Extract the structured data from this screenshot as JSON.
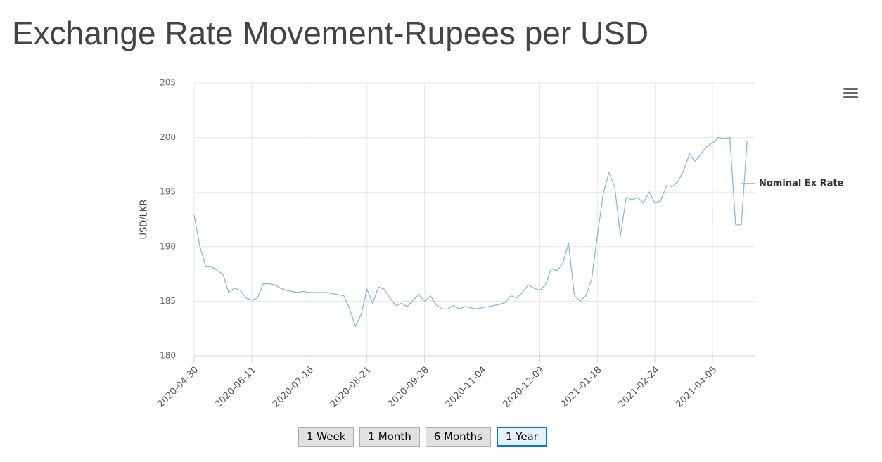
{
  "chart_data": {
    "type": "line",
    "title": "Exchange Rate Movement-Rupees per USD",
    "ylabel": "USD/LKR",
    "categories": [
      "2020-04-30",
      null,
      null,
      null,
      null,
      null,
      null,
      null,
      null,
      null,
      "2020-06-11",
      null,
      null,
      null,
      null,
      null,
      null,
      null,
      null,
      null,
      "2020-07-16",
      null,
      null,
      null,
      null,
      null,
      null,
      null,
      null,
      null,
      "2020-08-21",
      null,
      null,
      null,
      null,
      null,
      null,
      null,
      null,
      null,
      "2020-09-28",
      null,
      null,
      null,
      null,
      null,
      null,
      null,
      null,
      null,
      "2020-11-04",
      null,
      null,
      null,
      null,
      null,
      null,
      null,
      null,
      null,
      "2020-12-09",
      null,
      null,
      null,
      null,
      null,
      null,
      null,
      null,
      null,
      "2021-01-18",
      null,
      null,
      null,
      null,
      null,
      null,
      null,
      null,
      null,
      "2021-02-24",
      null,
      null,
      null,
      null,
      null,
      null,
      null,
      null,
      null,
      "2021-04-05",
      null,
      null,
      null,
      null,
      null,
      null
    ],
    "series": [
      {
        "name": "Nominal Ex Rate",
        "color": "#7cb5ec",
        "values": [
          192.9,
          190.0,
          188.2,
          188.2,
          187.8,
          187.5,
          185.8,
          186.2,
          186.0,
          185.3,
          185.1,
          185.3,
          186.6,
          186.6,
          186.5,
          186.2,
          186.0,
          185.9,
          185.8,
          185.9,
          185.8,
          185.8,
          185.8,
          185.8,
          185.7,
          185.6,
          185.5,
          184.3,
          182.7,
          183.8,
          186.1,
          184.8,
          186.3,
          186.1,
          185.3,
          184.6,
          184.8,
          184.5,
          185.1,
          185.6,
          185.0,
          185.5,
          184.7,
          184.3,
          184.3,
          184.6,
          184.3,
          184.5,
          184.4,
          184.3,
          184.4,
          184.5,
          184.6,
          184.7,
          184.9,
          185.5,
          185.3,
          185.8,
          186.5,
          186.2,
          186.0,
          186.5,
          188.0,
          187.8,
          188.5,
          190.3,
          185.6,
          185.0,
          185.5,
          187.0,
          191.0,
          194.8,
          196.8,
          195.5,
          191.0,
          194.5,
          194.3,
          194.5,
          194.0,
          195.0,
          194.0,
          194.2,
          195.6,
          195.5,
          196.0,
          197.0,
          198.5,
          197.8,
          198.5,
          199.2,
          199.5,
          200.0,
          199.9,
          200.0,
          192.0,
          192.0,
          199.7
        ]
      }
    ],
    "ylim": [
      180,
      205
    ],
    "yticks": [
      180,
      185,
      190,
      195,
      200,
      205
    ],
    "grid": true,
    "legend": "right",
    "range_buttons": [
      "1 Week",
      "1 Month",
      "6 Months",
      "1 Year"
    ],
    "selected_button": 3
  }
}
